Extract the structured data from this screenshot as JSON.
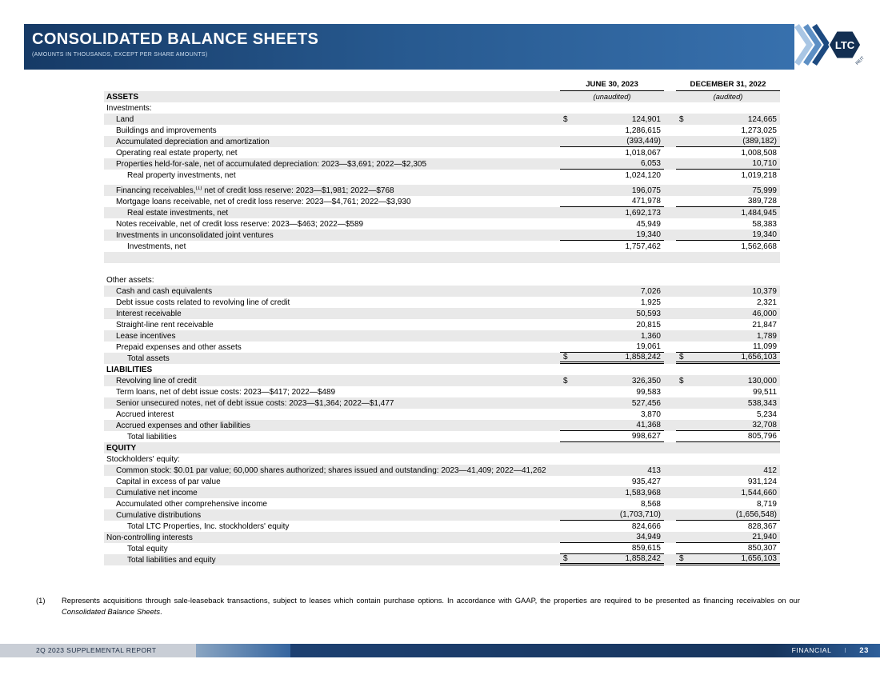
{
  "header": {
    "title": "CONSOLIDATED BALANCE SHEETS",
    "subtitle": "(AMOUNTS IN THOUSANDS, EXCEPT PER SHARE AMOUNTS)"
  },
  "logo": {
    "text": "LTC",
    "reit": "REIT"
  },
  "colors": {
    "banner_start": "#163a66",
    "banner_end": "#3a74b2",
    "row_shade": "#e9e9e9",
    "footer_gray": "#c9ced6",
    "footer_navy": "#17355d"
  },
  "table": {
    "col_headers": [
      {
        "label": "JUNE 30, 2023"
      },
      {
        "label": "DECEMBER 31, 2022"
      }
    ],
    "rows": [
      {
        "label": "ASSETS",
        "bold": true,
        "indent": 0,
        "shade": true,
        "v1": "(unaudited)",
        "v2": "(audited)",
        "center_italic": true
      },
      {
        "label": "Investments:",
        "indent": 0,
        "shade": false
      },
      {
        "label": "Land",
        "indent": 1,
        "shade": true,
        "dollar": true,
        "v1": "124,901",
        "v2": "124,665"
      },
      {
        "label": "Buildings and improvements",
        "indent": 1,
        "shade": false,
        "v1": "1,286,615",
        "v2": "1,273,025"
      },
      {
        "label": "Accumulated depreciation and amortization",
        "indent": 1,
        "shade": true,
        "v1": "(393,449)",
        "v2": "(389,182)",
        "underline": "single"
      },
      {
        "label": "Operating real estate property, net",
        "indent": 1,
        "shade": false,
        "v1": "1,018,067",
        "v2": "1,008,508"
      },
      {
        "label": "Properties held-for-sale, net of accumulated depreciation: 2023—$3,691; 2022—$2,305",
        "indent": 1,
        "shade": true,
        "v1": "6,053",
        "v2": "10,710",
        "underline": "single"
      },
      {
        "label": "Real property investments, net",
        "indent": 2,
        "shade": false,
        "v1": "1,024,120",
        "v2": "1,019,218"
      },
      {
        "spacer": 5
      },
      {
        "label": "Financing receivables,",
        "sup": "(1)",
        "label2": " net of credit loss reserve: 2023—$1,981; 2022—$768",
        "indent": 1,
        "shade": true,
        "v1": "196,075",
        "v2": "75,999"
      },
      {
        "label": "Mortgage loans receivable, net of credit loss reserve: 2023—$4,761; 2022—$3,930",
        "indent": 1,
        "shade": false,
        "v1": "471,978",
        "v2": "389,728",
        "underline": "single"
      },
      {
        "label": "Real estate investments, net",
        "indent": 2,
        "shade": true,
        "v1": "1,692,173",
        "v2": "1,484,945"
      },
      {
        "label": "Notes receivable, net of credit loss reserve: 2023—$463; 2022—$589",
        "indent": 1,
        "shade": false,
        "v1": "45,949",
        "v2": "58,383"
      },
      {
        "label": "Investments in unconsolidated joint ventures",
        "indent": 1,
        "shade": true,
        "v1": "19,340",
        "v2": "19,340",
        "underline": "single"
      },
      {
        "label": "Investments, net",
        "indent": 2,
        "shade": false,
        "v1": "1,757,462",
        "v2": "1,562,668"
      },
      {
        "label": "",
        "indent": 0,
        "shade": true
      },
      {
        "label": "",
        "indent": 0,
        "shade": false
      },
      {
        "label": "Other assets:",
        "indent": 0,
        "shade": false
      },
      {
        "label": "Cash and cash equivalents",
        "indent": 1,
        "shade": true,
        "v1": "7,026",
        "v2": "10,379"
      },
      {
        "label": "Debt issue costs related to revolving line of credit",
        "indent": 1,
        "shade": false,
        "v1": "1,925",
        "v2": "2,321"
      },
      {
        "label": "Interest receivable",
        "indent": 1,
        "shade": true,
        "v1": "50,593",
        "v2": "46,000"
      },
      {
        "label": "Straight-line rent receivable",
        "indent": 1,
        "shade": false,
        "v1": "20,815",
        "v2": "21,847"
      },
      {
        "label": "Lease incentives",
        "indent": 1,
        "shade": true,
        "v1": "1,360",
        "v2": "1,789"
      },
      {
        "label": "Prepaid expenses and other assets",
        "indent": 1,
        "shade": false,
        "v1": "19,061",
        "v2": "11,099",
        "underline": "single"
      },
      {
        "label": "Total assets",
        "indent": 2,
        "shade": true,
        "dollar": true,
        "v1": "1,858,242",
        "v2": "1,656,103",
        "underline": "double"
      },
      {
        "label": "LIABILITIES",
        "bold": true,
        "indent": 0,
        "shade": false
      },
      {
        "label": "Revolving line of credit",
        "indent": 1,
        "shade": true,
        "dollar": true,
        "v1": "326,350",
        "v2": "130,000"
      },
      {
        "label": "Term loans, net of debt issue costs: 2023—$417; 2022—$489",
        "indent": 1,
        "shade": false,
        "v1": "99,583",
        "v2": "99,511"
      },
      {
        "label": "Senior unsecured notes, net of debt issue costs: 2023—$1,364; 2022—$1,477",
        "indent": 1,
        "shade": true,
        "v1": "527,456",
        "v2": "538,343"
      },
      {
        "label": "Accrued interest",
        "indent": 1,
        "shade": false,
        "v1": "3,870",
        "v2": "5,234"
      },
      {
        "label": "Accrued expenses and other liabilities",
        "indent": 1,
        "shade": true,
        "v1": "41,368",
        "v2": "32,708",
        "underline": "single"
      },
      {
        "label": "Total liabilities",
        "indent": 2,
        "shade": false,
        "v1": "998,627",
        "v2": "805,796",
        "underline": "single"
      },
      {
        "label": "EQUITY",
        "bold": true,
        "indent": 0,
        "shade": true
      },
      {
        "label": "Stockholders' equity:",
        "indent": 0,
        "shade": false
      },
      {
        "label": "Common stock: $0.01 par value; 60,000 shares authorized; shares issued and outstanding: 2023—41,409; 2022—41,262",
        "indent": 1,
        "shade": true,
        "v1": "413",
        "v2": "412"
      },
      {
        "label": "Capital in excess of par value",
        "indent": 1,
        "shade": false,
        "v1": "935,427",
        "v2": "931,124"
      },
      {
        "label": "Cumulative net income",
        "indent": 1,
        "shade": true,
        "v1": "1,583,968",
        "v2": "1,544,660"
      },
      {
        "label": "Accumulated other comprehensive income",
        "indent": 1,
        "shade": false,
        "v1": "8,568",
        "v2": "8,719"
      },
      {
        "label": "Cumulative distributions",
        "indent": 1,
        "shade": true,
        "v1": "(1,703,710)",
        "v2": "(1,656,548)",
        "underline": "single"
      },
      {
        "label": "Total LTC Properties, Inc. stockholders' equity",
        "indent": 2,
        "shade": false,
        "v1": "824,666",
        "v2": "828,367"
      },
      {
        "label": "Non-controlling interests",
        "indent": 0,
        "shade": true,
        "v1": "34,949",
        "v2": "21,940",
        "underline": "single"
      },
      {
        "label": "Total equity",
        "indent": 2,
        "shade": false,
        "v1": "859,615",
        "v2": "850,307",
        "underline": "single"
      },
      {
        "label": "Total liabilities and equity",
        "indent": 2,
        "shade": true,
        "dollar": true,
        "v1": "1,858,242",
        "v2": "1,656,103",
        "underline": "double"
      }
    ]
  },
  "footnote": {
    "marker": "(1)",
    "text": "Represents acquisitions through sale-leaseback transactions, subject to leases which contain purchase options. In accordance with GAAP, the properties are required to be presented as financing receivables on our ",
    "italic": "Consolidated Balance Sheets",
    "end": "."
  },
  "footer": {
    "left": "2Q 2023 SUPPLEMENTAL REPORT",
    "section": "FINANCIAL",
    "divider": "I",
    "page": "23"
  }
}
